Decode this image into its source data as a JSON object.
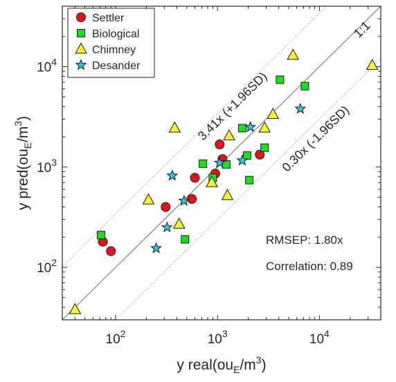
{
  "chart_data": {
    "type": "scatter",
    "xscale": "log",
    "yscale": "log",
    "xlim": [
      30,
      40000
    ],
    "ylim": [
      30,
      40000
    ],
    "x_ticks": [
      {
        "value": 100,
        "base": "10",
        "exp": "2"
      },
      {
        "value": 1000,
        "base": "10",
        "exp": "3"
      },
      {
        "value": 10000,
        "base": "10",
        "exp": "4"
      }
    ],
    "y_ticks": [
      {
        "value": 100,
        "base": "10",
        "exp": "2"
      },
      {
        "value": 1000,
        "base": "10",
        "exp": "3"
      },
      {
        "value": 10000,
        "base": "10",
        "exp": "4"
      }
    ],
    "xlabel": {
      "pre": "y real(ou",
      "sub": "E",
      "mid": "/m",
      "sup": "3",
      "post": ")"
    },
    "ylabel": {
      "pre": "y pred(ou",
      "sub": "E",
      "mid": "/m",
      "sup": "3",
      "post": ")"
    },
    "grid": false,
    "legend_position": "top-left",
    "series": [
      {
        "name": "Settler",
        "marker": "circle",
        "color": "#e4141b",
        "points": [
          [
            75,
            180
          ],
          [
            90,
            145
          ],
          [
            310,
            400
          ],
          [
            560,
            480
          ],
          [
            600,
            780
          ],
          [
            950,
            860
          ],
          [
            1050,
            1680
          ],
          [
            1120,
            1200
          ],
          [
            2600,
            1330
          ]
        ]
      },
      {
        "name": "Biological",
        "marker": "square",
        "color": "#19e119",
        "points": [
          [
            72,
            210
          ],
          [
            480,
            190
          ],
          [
            720,
            1080
          ],
          [
            900,
            780
          ],
          [
            1220,
            1060
          ],
          [
            1750,
            2440
          ],
          [
            1950,
            1300
          ],
          [
            2050,
            740
          ],
          [
            2900,
            1560
          ],
          [
            4100,
            7400
          ],
          [
            7200,
            6400
          ]
        ]
      },
      {
        "name": "Chimney",
        "marker": "triangle",
        "color": "#f5f52a",
        "points": [
          [
            40,
            38
          ],
          [
            210,
            470
          ],
          [
            380,
            2450
          ],
          [
            420,
            270
          ],
          [
            880,
            700
          ],
          [
            1250,
            520
          ],
          [
            1300,
            2050
          ],
          [
            2900,
            2450
          ],
          [
            3500,
            3350
          ],
          [
            5500,
            13000
          ],
          [
            33000,
            10300
          ]
        ]
      },
      {
        "name": "Desander",
        "marker": "star",
        "color": "#2ac6e2",
        "points": [
          [
            250,
            155
          ],
          [
            320,
            250
          ],
          [
            360,
            820
          ],
          [
            470,
            460
          ],
          [
            1050,
            1100
          ],
          [
            1750,
            1160
          ],
          [
            2100,
            2500
          ],
          [
            6500,
            3800
          ]
        ]
      }
    ],
    "reference_lines": [
      {
        "label": "1:1",
        "factor": 1.0,
        "style": "solid",
        "color": "#8c8c8c"
      },
      {
        "label": "3.41x (+1.96SD)",
        "factor": 3.41,
        "style": "dotted",
        "color": "#9a9a9a"
      },
      {
        "label": "0.30x (-1.96SD)",
        "factor": 0.3,
        "style": "dotted",
        "color": "#9a9a9a"
      }
    ],
    "annotations": [
      {
        "text": "RMSEP: 1.80x"
      },
      {
        "text": "Correlation: 0.89"
      }
    ]
  }
}
